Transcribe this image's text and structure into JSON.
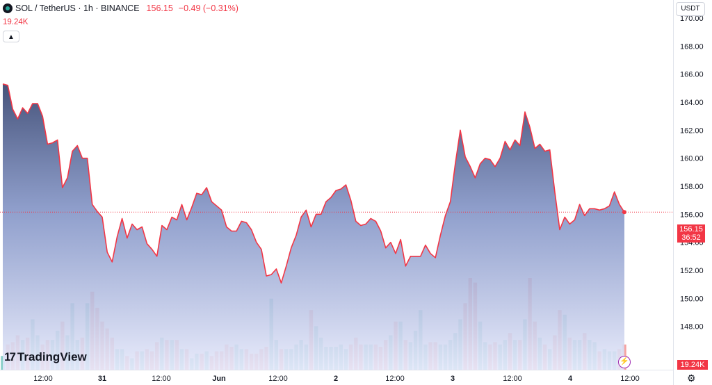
{
  "header": {
    "title": "SOL / TetherUS · 1h · BINANCE",
    "price": "156.15",
    "change": "−0.49 (−0.31%)",
    "volume": "19.24K"
  },
  "currency_label": "USDT",
  "last_price_tag": {
    "price": "156.15",
    "countdown": "36:52"
  },
  "volume_tag": "19.24K",
  "logo_text": "TradingView",
  "colors": {
    "line": "#f23645",
    "up": "#26a69a",
    "down": "#ef5350",
    "area_top": "#3c4a73",
    "area_bottom": "#e6e9fb",
    "replay": "#9c27b0"
  },
  "chart_data": {
    "type": "area",
    "symbol": "SOLUSDT",
    "interval": "1h",
    "ylim": [
      146.0,
      170.0
    ],
    "y_ticks": [
      "148.00",
      "150.00",
      "152.00",
      "154.00",
      "156.00",
      "158.00",
      "160.00",
      "162.00",
      "164.00",
      "166.00",
      "168.00",
      "170.00"
    ],
    "x_tick_labels": [
      "12:00",
      "31",
      "12:00",
      "Jun",
      "12:00",
      "2",
      "12:00",
      "3",
      "12:00",
      "4",
      "12:00"
    ],
    "last_price": 156.15,
    "closes": [
      165.3,
      165.2,
      163.5,
      162.8,
      163.6,
      163.2,
      163.9,
      163.9,
      163.0,
      161.0,
      161.1,
      161.3,
      157.9,
      158.6,
      160.5,
      160.9,
      160.0,
      160.0,
      156.7,
      156.2,
      155.8,
      153.3,
      152.6,
      154.4,
      155.7,
      154.3,
      155.3,
      154.9,
      155.1,
      153.9,
      153.5,
      153.0,
      155.2,
      154.9,
      155.8,
      155.6,
      156.7,
      155.6,
      156.5,
      157.5,
      157.4,
      157.9,
      156.9,
      156.6,
      156.3,
      155.1,
      154.8,
      154.8,
      155.5,
      155.4,
      154.9,
      154.0,
      153.5,
      151.6,
      151.7,
      152.1,
      151.1,
      152.3,
      153.6,
      154.5,
      155.8,
      156.3,
      155.1,
      156.0,
      156.0,
      156.9,
      157.2,
      157.7,
      157.8,
      158.1,
      157.0,
      155.5,
      155.2,
      155.3,
      155.7,
      155.5,
      154.8,
      153.6,
      154.0,
      153.2,
      154.2,
      152.3,
      153.0,
      153.0,
      153.0,
      153.8,
      153.2,
      152.9,
      154.5,
      155.9,
      156.9,
      159.6,
      162.0,
      160.1,
      159.4,
      158.6,
      159.6,
      160.0,
      159.9,
      159.4,
      160.0,
      161.2,
      160.6,
      161.3,
      160.9,
      163.3,
      162.2,
      160.7,
      161.0,
      160.5,
      160.6,
      157.6,
      154.9,
      155.8,
      155.3,
      155.6,
      156.7,
      155.9,
      156.4,
      156.4,
      156.3,
      156.4,
      156.6,
      157.6,
      156.7,
      156.15
    ],
    "volumes": [
      0.6,
      1.1,
      1.2,
      1.5,
      1.3,
      1.4,
      2.2,
      1.5,
      1.1,
      1.3,
      1.3,
      1.7,
      2.1,
      1.5,
      2.9,
      1.3,
      1.4,
      2.9,
      3.4,
      2.7,
      2.1,
      1.8,
      1.4,
      0.9,
      0.9,
      0.6,
      0.5,
      0.8,
      0.8,
      0.9,
      0.8,
      1.2,
      1.4,
      1.3,
      1.3,
      1.3,
      0.9,
      0.9,
      0.5,
      0.7,
      0.7,
      0.8,
      0.6,
      0.8,
      0.8,
      1.1,
      1.0,
      1.1,
      0.9,
      0.9,
      0.7,
      0.7,
      0.9,
      1.0,
      3.1,
      1.3,
      0.9,
      0.9,
      0.9,
      1.1,
      1.3,
      1.1,
      2.6,
      1.9,
      1.4,
      1.0,
      1.0,
      1.0,
      1.1,
      0.9,
      1.1,
      1.4,
      1.1,
      1.1,
      1.1,
      1.1,
      1.0,
      1.3,
      1.5,
      2.1,
      2.1,
      1.3,
      1.2,
      1.7,
      2.6,
      1.1,
      1.2,
      1.2,
      1.1,
      1.1,
      1.3,
      1.6,
      2.2,
      2.9,
      4.0,
      3.8,
      2.1,
      1.2,
      1.1,
      1.2,
      1.1,
      1.3,
      1.6,
      1.3,
      1.3,
      2.2,
      4.0,
      2.1,
      1.4,
      1.1,
      0.9,
      1.5,
      2.6,
      2.4,
      1.4,
      1.3,
      1.3,
      1.6,
      1.3,
      1.2,
      0.8,
      0.9,
      0.8,
      0.8,
      0.9,
      1.1
    ]
  }
}
